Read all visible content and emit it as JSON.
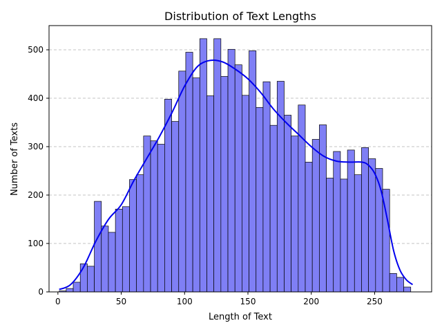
{
  "chart_data": {
    "type": "bar",
    "title": "Distribution of Text Lengths",
    "xlabel": "Length of Text",
    "ylabel": "Number of Texts",
    "xlim": [
      -7,
      295
    ],
    "ylim": [
      0,
      550
    ],
    "x_ticks": [
      0,
      50,
      100,
      150,
      200,
      250
    ],
    "y_ticks": [
      0,
      100,
      200,
      300,
      400,
      500
    ],
    "grid": {
      "y": true,
      "x": false,
      "style": "dashed"
    },
    "bin_start": 1,
    "bin_width": 5.55,
    "values": [
      2,
      7,
      20,
      58,
      53,
      187,
      136,
      123,
      171,
      176,
      232,
      242,
      322,
      312,
      305,
      398,
      352,
      456,
      495,
      442,
      523,
      405,
      523,
      445,
      501,
      469,
      406,
      498,
      381,
      434,
      344,
      435,
      365,
      322,
      386,
      268,
      315,
      345,
      235,
      290,
      233,
      293,
      242,
      298,
      275,
      255,
      212,
      38,
      30,
      10
    ],
    "kde": {
      "x": [
        1,
        10,
        20,
        30,
        40,
        50,
        60,
        70,
        80,
        90,
        100,
        110,
        120,
        130,
        140,
        150,
        160,
        170,
        180,
        190,
        200,
        210,
        220,
        230,
        240,
        245,
        250,
        255,
        260,
        265,
        270,
        275,
        280
      ],
      "y": [
        5,
        15,
        50,
        105,
        150,
        180,
        230,
        275,
        320,
        370,
        425,
        465,
        478,
        475,
        460,
        440,
        412,
        378,
        350,
        325,
        300,
        280,
        270,
        268,
        268,
        262,
        245,
        210,
        150,
        85,
        45,
        25,
        15
      ]
    },
    "colors": {
      "bar_fill": "#7f7ff5",
      "bar_edge": "#000000",
      "kde_line": "#0000ee",
      "grid": "#b0b0b0"
    }
  }
}
